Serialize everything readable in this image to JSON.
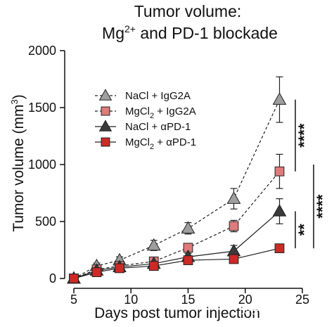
{
  "chart_data": {
    "type": "line",
    "title_line1": "Tumor volume:",
    "title_line2_pre": "Mg",
    "title_line2_sup": "2+",
    "title_line2_post": " and PD-1 blockade",
    "xlabel": "Days post tumor injection",
    "ylabel_pre": "Tumor volume (mm",
    "ylabel_sup": "3",
    "ylabel_post": ")",
    "xlim": [
      5,
      25
    ],
    "ylim": [
      0,
      2000
    ],
    "xticks": [
      5,
      10,
      15,
      20,
      25
    ],
    "yticks": [
      0,
      500,
      1000,
      1500,
      2000
    ],
    "grid": false,
    "legend_position": "upper-left",
    "series": [
      {
        "name_pre": "NaCl + IgG2A",
        "name_sub": "",
        "name_post": "",
        "marker": "triangle",
        "color": "#9e9e9e",
        "line": "dashed",
        "x": [
          5,
          7,
          9,
          12,
          15,
          19,
          23
        ],
        "y": [
          0,
          110,
          160,
          290,
          440,
          700,
          1570
        ],
        "err": [
          20,
          25,
          30,
          45,
          50,
          90,
          200
        ]
      },
      {
        "name_pre": "MgCl",
        "name_sub": "2",
        "name_post": " + IgG2A",
        "marker": "square",
        "color": "#e07b7b",
        "line": "dashed",
        "x": [
          5,
          7,
          9,
          12,
          15,
          19,
          23
        ],
        "y": [
          0,
          80,
          110,
          150,
          270,
          460,
          940
        ],
        "err": [
          15,
          20,
          20,
          25,
          30,
          50,
          150
        ]
      },
      {
        "name_pre": "NaCl + αPD-1",
        "name_sub": "",
        "name_post": "",
        "marker": "triangle",
        "color": "#3a3a3a",
        "line": "solid",
        "x": [
          5,
          7,
          9,
          12,
          15,
          19,
          23
        ],
        "y": [
          0,
          70,
          100,
          130,
          190,
          240,
          590
        ],
        "err": [
          15,
          15,
          20,
          20,
          30,
          50,
          110
        ]
      },
      {
        "name_pre": "MgCl",
        "name_sub": "2",
        "name_post": " + αPD-1",
        "marker": "square",
        "color": "#cc2a26",
        "line": "solid",
        "x": [
          5,
          7,
          9,
          12,
          15,
          19,
          23
        ],
        "y": [
          0,
          55,
          90,
          110,
          160,
          170,
          265
        ],
        "err": [
          10,
          10,
          15,
          15,
          20,
          20,
          25
        ]
      }
    ],
    "significance": [
      {
        "label": "****",
        "from": 1570,
        "to": 940
      },
      {
        "label": "****",
        "from": 1000,
        "to": 265
      },
      {
        "label": "**",
        "from": 590,
        "to": 265
      }
    ],
    "watermark": "知乎 @肿瘤指南者"
  }
}
